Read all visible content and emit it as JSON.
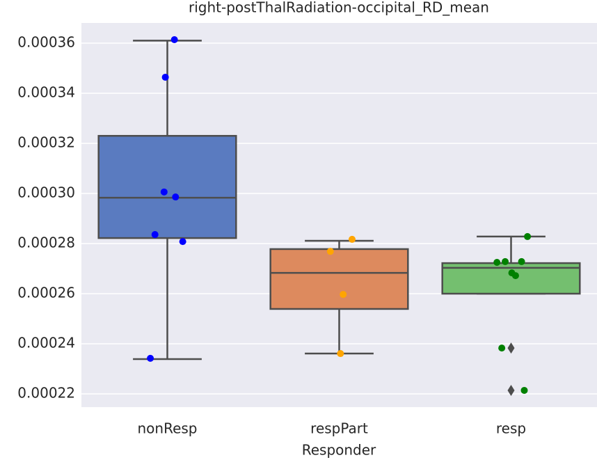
{
  "chart_data": {
    "type": "box",
    "title": "right-postThalRadiation-occipital_RD_mean",
    "xlabel": "Responder",
    "categories": [
      "nonResp",
      "respPart",
      "resp"
    ],
    "ylim": [
      0.00021472,
      0.00036806
    ],
    "yticks": [
      0.00022,
      0.00024,
      0.00026,
      0.00028,
      {
        "value": 0.0003,
        "label": "0.00030"
      },
      0.00032,
      0.00034,
      0.00036
    ],
    "grid": true,
    "boxes": [
      {
        "color": "#5a7bc0",
        "whislo": 0.0002339,
        "q1": 0.0002822,
        "med": 0.0002983,
        "q3": 0.000323,
        "whishi": 0.000361,
        "fliers": []
      },
      {
        "color": "#dd8a5e",
        "whislo": 0.0002361,
        "q1": 0.0002539,
        "med": 0.0002683,
        "q3": 0.0002778,
        "whishi": 0.0002811,
        "fliers": []
      },
      {
        "color": "#74bf6f",
        "whislo": 0.00026,
        "q1": 0.00026,
        "med": 0.0002703,
        "q3": 0.0002722,
        "whishi": 0.0002828,
        "fliers": [
          0.0002383,
          0.0002214
        ]
      }
    ],
    "points": [
      {
        "color": "#0000ff",
        "values": [
          0.0003614,
          0.0003464,
          0.0003006,
          0.0002986,
          0.0002836,
          0.0002808,
          0.0002342
        ]
      },
      {
        "color": "#ffa500",
        "values": [
          0.0002817,
          0.0002769,
          0.0002597,
          0.0002361
        ]
      },
      {
        "color": "#008000",
        "values": [
          0.0002828,
          0.0002725,
          0.0002728,
          0.0002728,
          0.0002683,
          0.0002672,
          0.0002383,
          0.0002214
        ]
      }
    ]
  }
}
